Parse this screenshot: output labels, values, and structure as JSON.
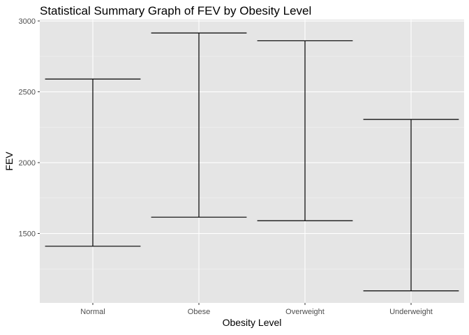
{
  "chart_data": {
    "type": "errorbar",
    "title": "Statistical Summary Graph of FEV by Obesity Level",
    "xlabel": "Obesity Level",
    "ylabel": "FEV",
    "categories": [
      "Normal",
      "Obese",
      "Overweight",
      "Underweight"
    ],
    "lower": [
      1410,
      1615,
      1590,
      1095
    ],
    "upper": [
      2590,
      2915,
      2860,
      2305
    ],
    "ylim": [
      1010,
      3010
    ],
    "yticks": [
      1500,
      2000,
      2500,
      3000
    ],
    "grid": true,
    "colors": {
      "panel_background": "#e5e5e5",
      "grid_major": "#ffffff",
      "grid_minor": "#f2f2f2",
      "errorbar": "#000000",
      "tick_label": "#4d4d4d",
      "text": "#000000"
    }
  }
}
